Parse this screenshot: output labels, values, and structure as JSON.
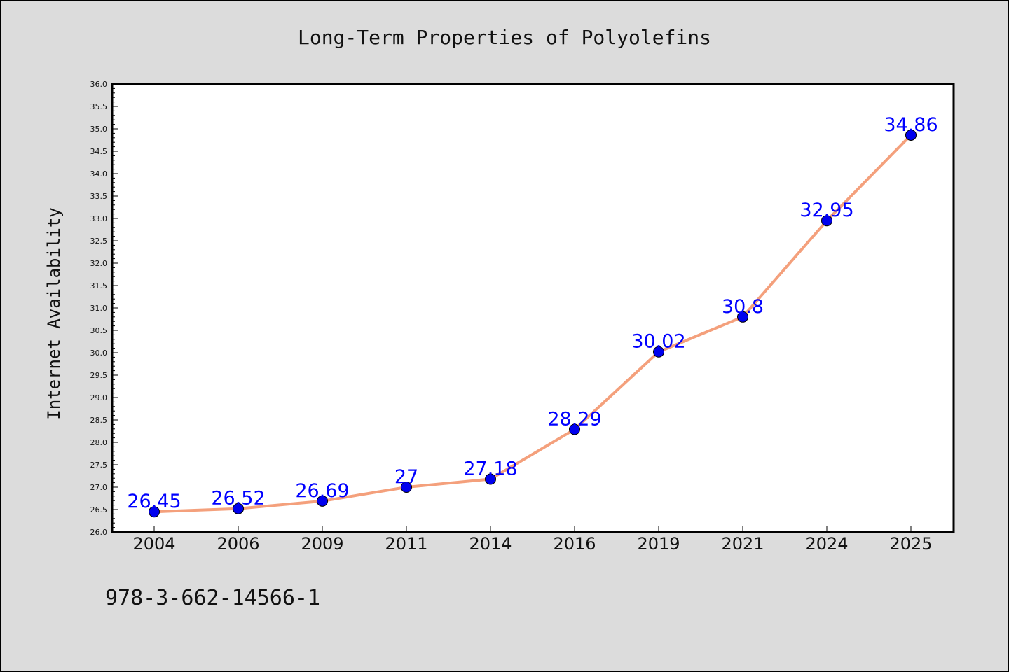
{
  "chart_data": {
    "type": "line",
    "title": "Long-Term Properties of Polyolefins",
    "xlabel": "",
    "ylabel": "Internet Availability",
    "categories": [
      "2004",
      "2006",
      "2009",
      "2011",
      "2014",
      "2016",
      "2019",
      "2021",
      "2024",
      "2025"
    ],
    "series": [
      {
        "values": [
          26.45,
          26.52,
          26.69,
          27,
          27.18,
          28.29,
          30.02,
          30.8,
          32.95,
          34.86
        ],
        "labels": [
          "26.45",
          "26.52",
          "26.69",
          "27",
          "27.18",
          "28.29",
          "30.02",
          "30.8",
          "32.95",
          "34.86"
        ],
        "line_color": "#f4a07c",
        "marker_color": "#0000ee",
        "label_color": "#0000ff"
      }
    ],
    "ylim": [
      26.0,
      36.0
    ],
    "yticks": [
      "26.0",
      "26.5",
      "27.0",
      "27.5",
      "28.0",
      "28.5",
      "29.0",
      "29.5",
      "30.0",
      "30.5",
      "31.0",
      "31.5",
      "32.0",
      "32.5",
      "33.0",
      "33.5",
      "34.0",
      "34.5",
      "35.0",
      "35.5",
      "36.0"
    ],
    "grid": false,
    "legend": "none"
  },
  "footnote": "978-3-662-14566-1",
  "colors": {
    "background": "#dcdcdc",
    "plot_background": "#ffffff",
    "axes": "#000000"
  }
}
